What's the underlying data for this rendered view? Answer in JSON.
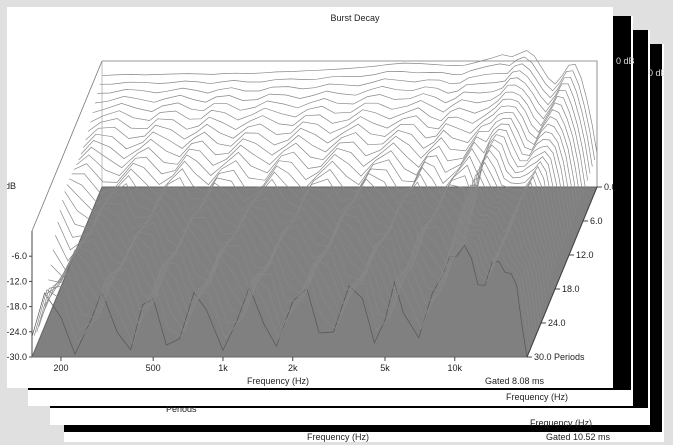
{
  "back_sheets": [
    {
      "footer_left": "Frequency (Hz)",
      "footer_right": "Gated 10.52 ms",
      "edge_label": "0"
    },
    {
      "footer_right": "Frequency (Hz)",
      "edge_label": "0 dB",
      "left_label": "Periods"
    },
    {
      "footer_right": "Frequency (Hz)",
      "edge_label": "0 dB"
    }
  ],
  "chart_data": {
    "type": "waterfall",
    "title": "Burst Decay",
    "xlabel": "Frequency (Hz)",
    "ylabel": "dB",
    "zlabel": "Periods",
    "x_scale": "log",
    "x_ticks": [
      200,
      500,
      1000,
      2000,
      5000,
      10000
    ],
    "x_tick_labels": [
      "200",
      "500",
      "1k",
      "2k",
      "5k",
      "10k"
    ],
    "y_ticks": [
      -6.0,
      -12.0,
      -18.0,
      -24.0,
      -30.0
    ],
    "y_tick_labels": [
      "-6.0",
      "-12.0",
      "-18.0",
      "-24.0",
      "-30.0"
    ],
    "z_ticks": [
      0.0,
      6.0,
      12.0,
      18.0,
      24.0,
      30.0
    ],
    "z_tick_labels": [
      "0.0",
      "6.0",
      "12.0",
      "18.0",
      "24.0",
      "30.0 Periods"
    ],
    "ylim": [
      -30,
      0
    ],
    "footer_note": "Gated 8.08 ms",
    "freq_hz": [
      150,
      170,
      200,
      230,
      270,
      300,
      350,
      400,
      450,
      500,
      570,
      650,
      750,
      850,
      1000,
      1150,
      1300,
      1500,
      1700,
      2000,
      2300,
      2600,
      3000,
      3500,
      4000,
      4500,
      5000,
      5500,
      6000,
      7000,
      8000,
      8800,
      9500,
      10200,
      11000,
      11800,
      12600,
      13500,
      14500,
      15500,
      16500,
      17500,
      18500,
      19500,
      20500
    ],
    "initial_response_db": [
      -3.5,
      -3.3,
      -3.2,
      -3.3,
      -3.2,
      -3.1,
      -3.0,
      -3.1,
      -3.2,
      -3.0,
      -2.9,
      -3.0,
      -2.8,
      -2.6,
      -2.5,
      -2.3,
      -2.2,
      -2.0,
      -1.8,
      -1.5,
      -1.2,
      -0.8,
      -0.5,
      -0.6,
      -0.8,
      -1.0,
      -1.1,
      -1.0,
      -0.5,
      0.5,
      1.5,
      1.0,
      1.8,
      2.5,
      1.2,
      -1.5,
      -4.0,
      -5.5,
      -3.5,
      -1.0,
      -0.8,
      -4.0,
      -9.0,
      -15.0,
      -22.0
    ],
    "decay_slices": 30
  }
}
